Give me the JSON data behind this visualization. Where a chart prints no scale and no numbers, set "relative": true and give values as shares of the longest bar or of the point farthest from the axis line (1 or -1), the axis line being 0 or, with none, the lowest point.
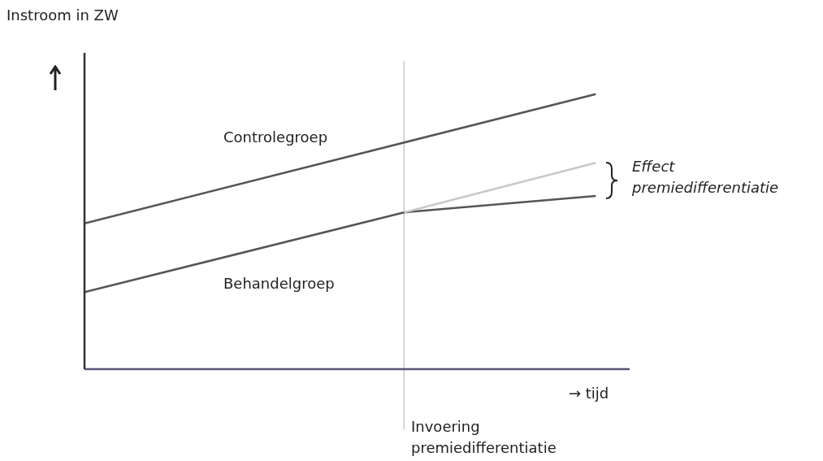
{
  "chart_data": {
    "type": "line",
    "relative": true,
    "ylabel": "Instroom in ZW",
    "xlabel": "→ tijd",
    "categories": [
      null,
      null,
      null,
      null,
      null,
      null,
      null,
      null,
      null
    ],
    "series": [
      {
        "name": "Controlegroep",
        "color": "#555555",
        "values": [
          0.53,
          null,
          null,
          null,
          null,
          null,
          null,
          null,
          1
        ]
      },
      {
        "name": "Behandelgroep",
        "color": "#555555",
        "values": [
          0.28,
          null,
          null,
          null,
          null,
          0.57,
          null,
          null,
          0.63
        ]
      },
      {
        "color": "#c8c8c8",
        "values": [
          null,
          null,
          null,
          null,
          null,
          0.57,
          null,
          null,
          0.75
        ]
      }
    ],
    "annotations": [
      "Effect premiedifferentiatie",
      "Invoering premiedifferentiatie"
    ],
    "grid": false,
    "legend": false,
    "marker": "none",
    "line_style": "solid"
  }
}
